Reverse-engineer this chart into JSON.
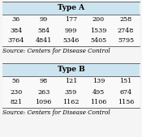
{
  "table_a_title": "Type A",
  "table_a_rows": [
    [
      "36",
      "99",
      "177",
      "200",
      "258"
    ],
    [
      "384",
      "584",
      "999",
      "1539",
      "2748"
    ],
    [
      "3764",
      "4841",
      "5346",
      "5405",
      "5795"
    ]
  ],
  "table_b_title": "Type B",
  "table_b_rows": [
    [
      "56",
      "98",
      "121",
      "139",
      "151"
    ],
    [
      "230",
      "263",
      "359",
      "495",
      "674"
    ],
    [
      "821",
      "1096",
      "1162",
      "1106",
      "1156"
    ]
  ],
  "source_text": "Source: Centers for Disease Control",
  "header_bg": "#cce4f0",
  "table_bg": "#f5f5f5",
  "title_fontsize": 6.5,
  "data_fontsize": 5.8,
  "source_fontsize": 5.2
}
